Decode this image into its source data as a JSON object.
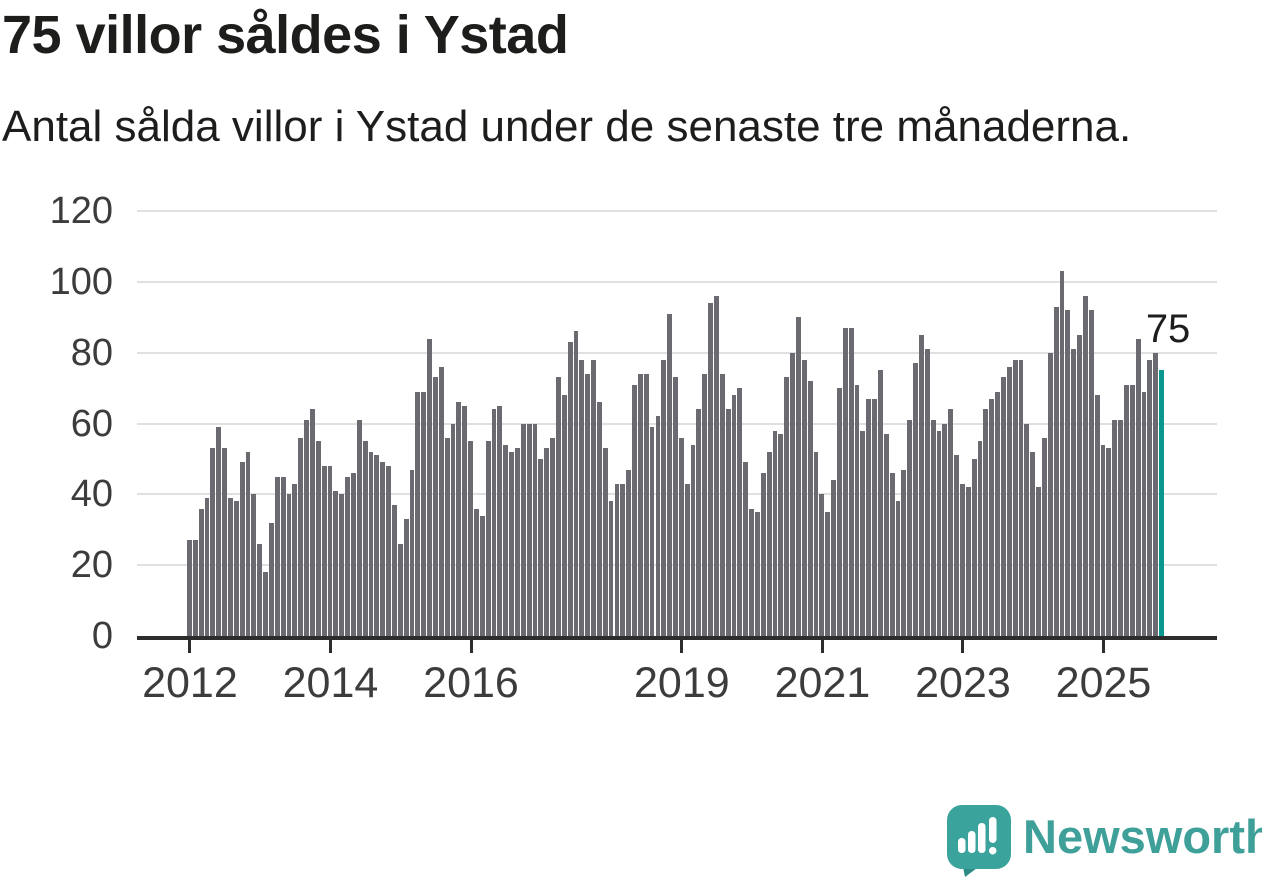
{
  "header": {
    "title": "75 villor såldes i Ystad",
    "subtitle": "Antal sålda villor i Ystad under de senaste tre månaderna."
  },
  "chart_data": {
    "type": "bar",
    "title": "75 villor såldes i Ystad",
    "subtitle": "Antal sålda villor i Ystad under de senaste tre månaderna.",
    "ylabel": "",
    "xlabel": "",
    "ylim": [
      0,
      120
    ],
    "y_ticks": [
      0,
      20,
      40,
      60,
      80,
      100,
      120
    ],
    "y_tick_labels": [
      "0",
      "20",
      "40",
      "60",
      "80",
      "100",
      "120"
    ],
    "x_tick_labels": [
      "2012",
      "2014",
      "2016",
      "2019",
      "2021",
      "2023",
      "2025"
    ],
    "start_year": 2012,
    "grid": "horizontal",
    "bar_color": "#6a6a70",
    "highlight_color": "#0a978f",
    "highlight_last": true,
    "last_value_label": "75",
    "values": [
      27,
      27,
      36,
      39,
      53,
      59,
      53,
      39,
      38,
      49,
      52,
      40,
      26,
      18,
      32,
      45,
      45,
      40,
      43,
      56,
      61,
      64,
      55,
      48,
      48,
      41,
      40,
      45,
      46,
      61,
      55,
      52,
      51,
      49,
      48,
      37,
      26,
      33,
      47,
      69,
      69,
      84,
      73,
      76,
      56,
      60,
      66,
      65,
      55,
      36,
      34,
      55,
      64,
      65,
      54,
      52,
      53,
      60,
      60,
      60,
      50,
      53,
      56,
      73,
      68,
      83,
      86,
      78,
      74,
      78,
      66,
      53,
      38,
      43,
      43,
      47,
      71,
      74,
      74,
      59,
      62,
      78,
      91,
      73,
      56,
      43,
      54,
      64,
      74,
      94,
      96,
      74,
      64,
      68,
      70,
      49,
      36,
      35,
      46,
      52,
      58,
      57,
      73,
      80,
      90,
      78,
      72,
      52,
      40,
      35,
      44,
      70,
      87,
      87,
      71,
      58,
      67,
      67,
      75,
      57,
      46,
      38,
      47,
      61,
      77,
      85,
      81,
      61,
      58,
      60,
      64,
      51,
      43,
      42,
      50,
      55,
      64,
      67,
      69,
      73,
      76,
      78,
      78,
      60,
      52,
      42,
      56,
      80,
      93,
      103,
      92,
      81,
      85,
      96,
      92,
      68,
      54,
      53,
      61,
      61,
      71,
      71,
      84,
      69,
      78,
      80,
      75
    ]
  },
  "footer": {
    "brand": "Newsworthy"
  },
  "colors": {
    "bar_gray": "#6a6a70",
    "bar_teal": "#0a978f",
    "gridline": "#e0e0e0",
    "axis": "#2d2d2d",
    "text_primary": "#1d1d1b",
    "tick_label": "#3c3c3c",
    "logo_teal": "#3aa39b",
    "logo_tail_teal": "#2e8b84",
    "wordmark_teal": "#3f9f99"
  }
}
